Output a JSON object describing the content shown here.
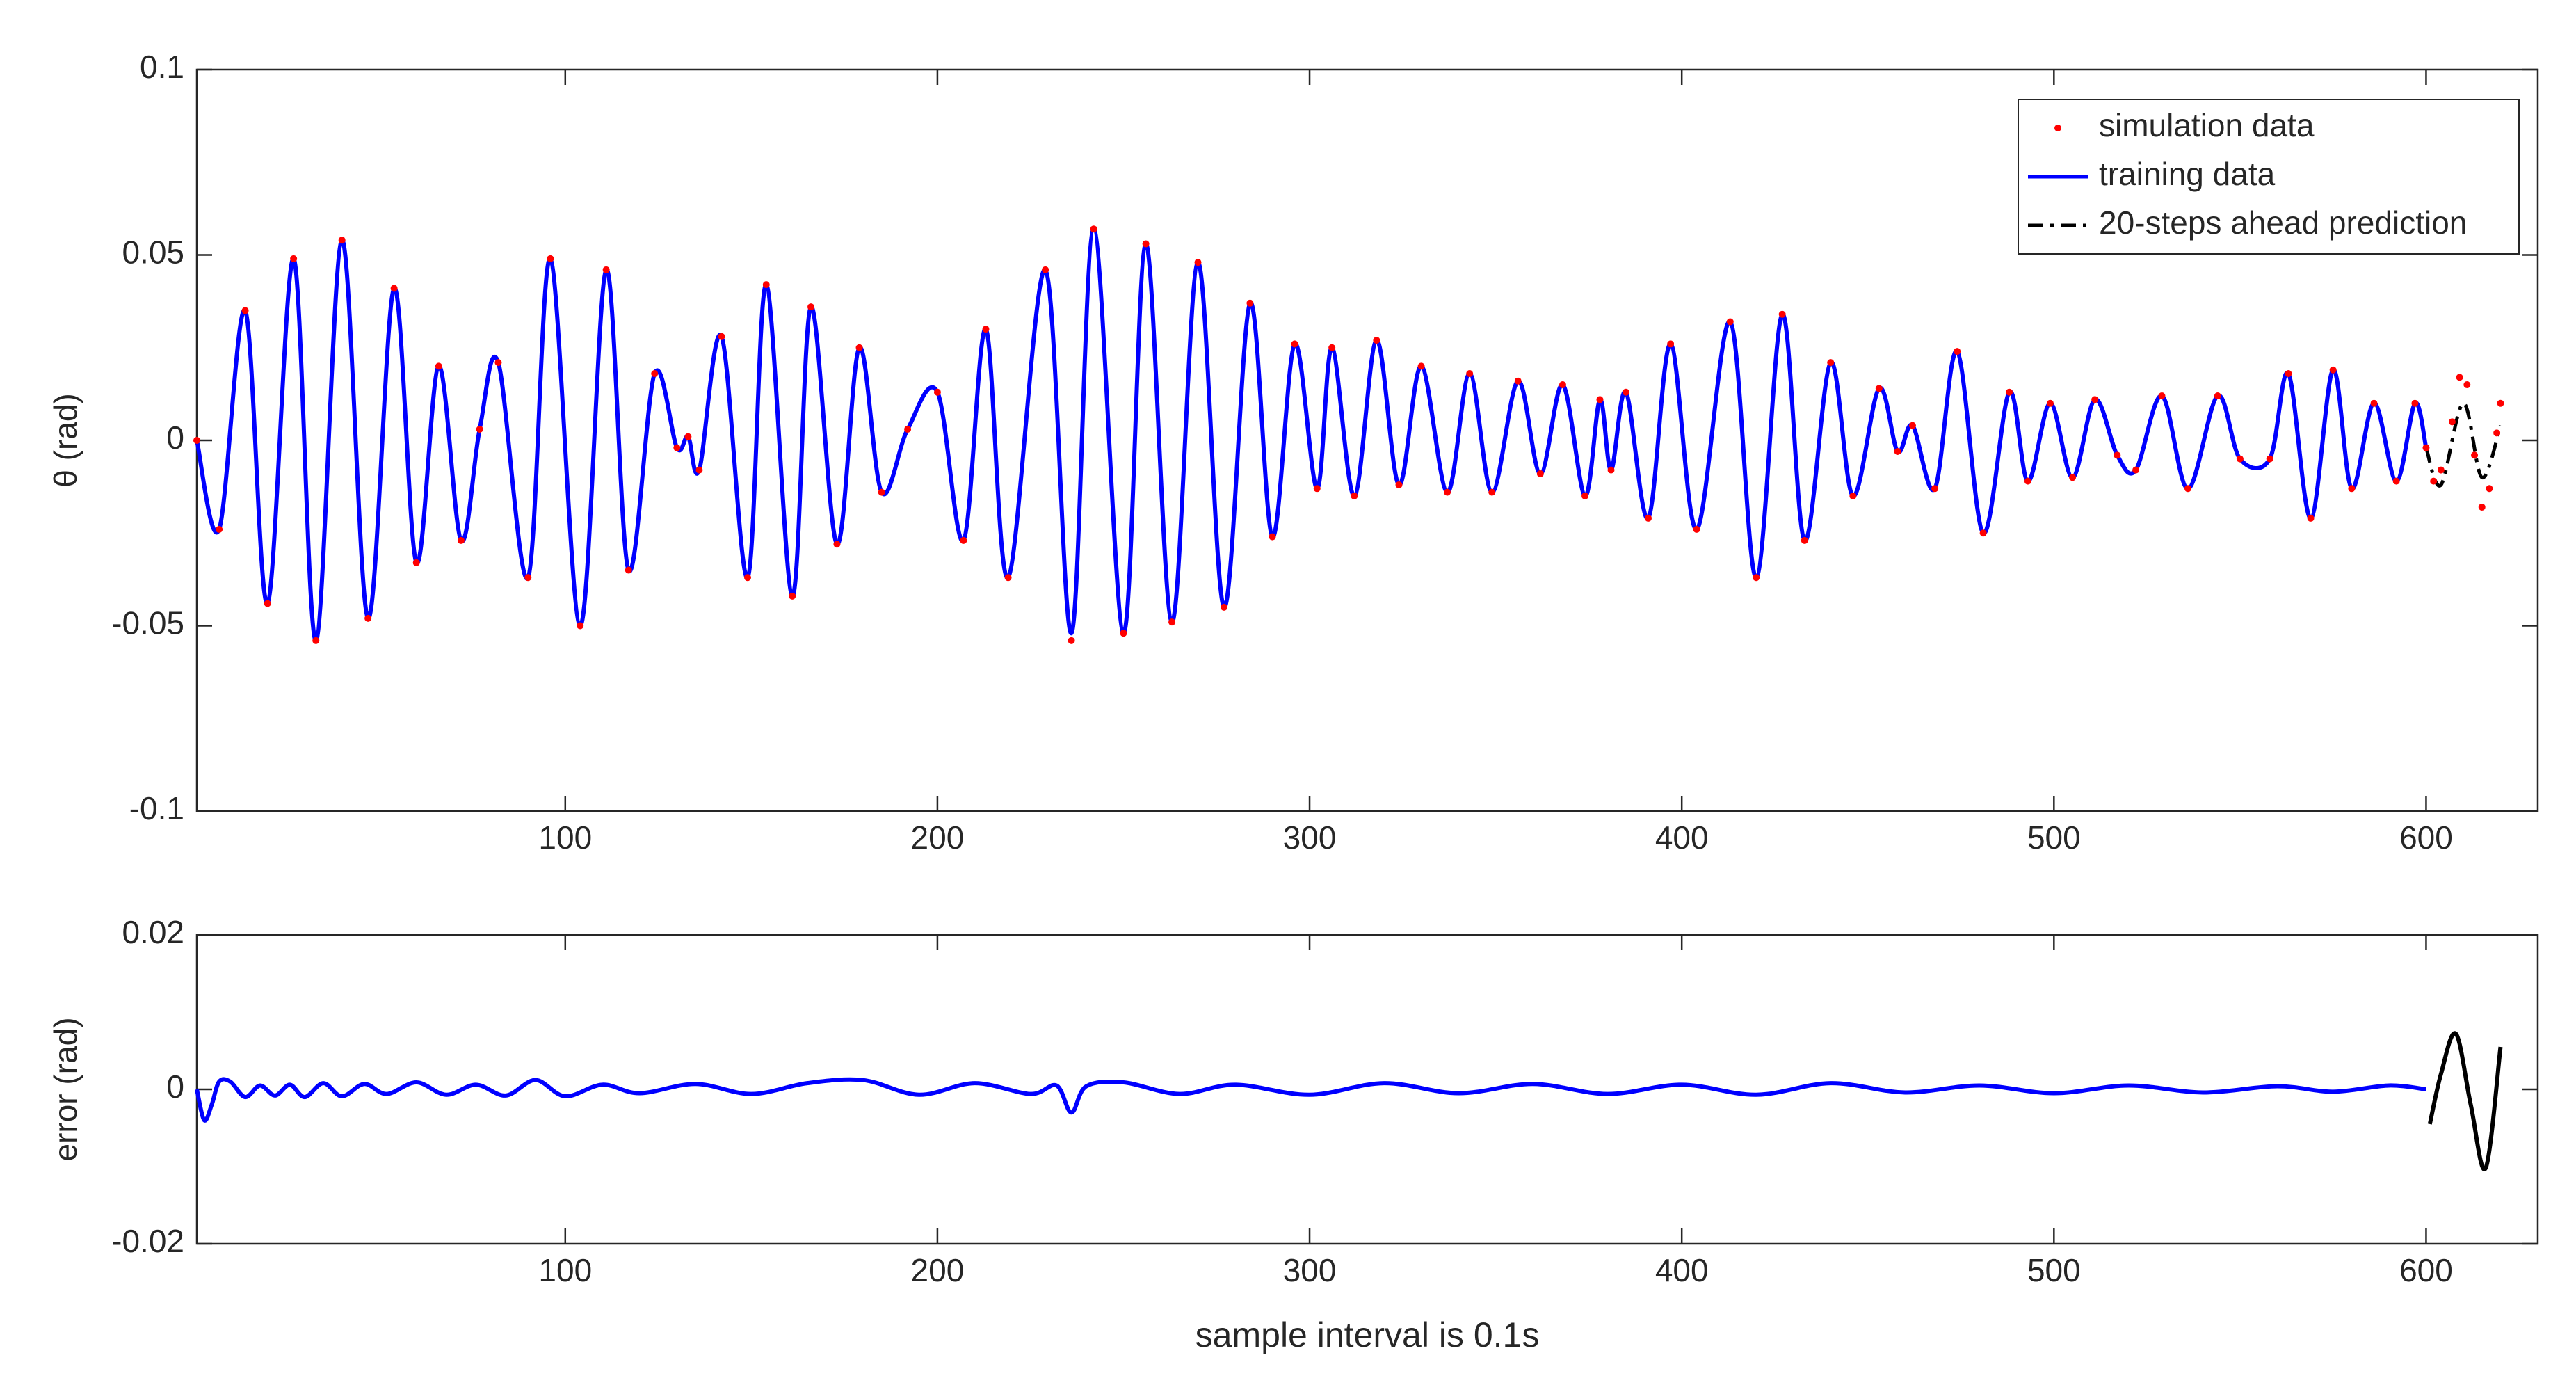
{
  "chart_data": [
    {
      "type": "line",
      "ylabel": "θ (rad)",
      "xlim": [
        1,
        630
      ],
      "xticks": [
        100,
        200,
        300,
        400,
        500,
        600
      ],
      "ylim": [
        -0.1,
        0.1
      ],
      "yticks": [
        -0.1,
        -0.05,
        0,
        0.05,
        0.1
      ],
      "legend": "upper right",
      "series": [
        {
          "name": "simulation data",
          "color": "#ff0000",
          "style": "dots",
          "x": [
            1,
            7,
            14,
            20,
            27,
            33,
            40,
            47,
            54,
            60,
            66,
            72,
            77,
            82,
            90,
            96,
            104,
            111,
            117,
            124,
            130,
            133,
            136,
            142,
            149,
            154,
            161,
            166,
            173,
            179,
            185,
            192,
            200,
            207,
            213,
            219,
            229,
            236,
            242,
            250,
            256,
            263,
            270,
            277,
            284,
            290,
            296,
            302,
            306,
            312,
            318,
            324,
            330,
            337,
            343,
            349,
            356,
            362,
            368,
            374,
            378,
            381,
            385,
            391,
            397,
            404,
            413,
            420,
            427,
            433,
            440,
            446,
            453,
            458,
            462,
            468,
            474,
            481,
            488,
            493,
            499,
            505,
            511,
            517,
            522,
            529,
            536,
            544,
            550,
            558,
            563,
            569,
            575,
            580,
            586,
            592,
            597,
            600,
            602,
            604,
            607,
            609,
            611,
            613,
            615,
            617,
            619,
            620
          ],
          "values": [
            0,
            -0.024,
            0.035,
            -0.044,
            0.049,
            -0.054,
            0.054,
            -0.048,
            0.041,
            -0.033,
            0.02,
            -0.027,
            0.003,
            0.021,
            -0.037,
            0.049,
            -0.05,
            0.046,
            -0.035,
            0.018,
            -0.002,
            0.001,
            -0.008,
            0.028,
            -0.037,
            0.042,
            -0.042,
            0.036,
            -0.028,
            0.025,
            -0.014,
            0.003,
            0.013,
            -0.027,
            0.03,
            -0.037,
            0.046,
            -0.054,
            0.057,
            -0.052,
            0.053,
            -0.049,
            0.048,
            -0.045,
            0.037,
            -0.026,
            0.026,
            -0.013,
            0.025,
            -0.015,
            0.027,
            -0.012,
            0.02,
            -0.014,
            0.018,
            -0.014,
            0.016,
            -0.009,
            0.015,
            -0.015,
            0.011,
            -0.008,
            0.013,
            -0.021,
            0.026,
            -0.024,
            0.032,
            -0.037,
            0.034,
            -0.027,
            0.021,
            -0.015,
            0.014,
            -0.003,
            0.004,
            -0.013,
            0.024,
            -0.025,
            0.013,
            -0.011,
            0.01,
            -0.01,
            0.011,
            -0.004,
            -0.008,
            0.012,
            -0.013,
            0.012,
            -0.005,
            -0.005,
            0.018,
            -0.021,
            0.019,
            -0.013,
            0.01,
            -0.011,
            0.01,
            -0.002,
            -0.011,
            -0.008,
            0.005,
            0.017,
            0.015,
            -0.004,
            -0.018,
            -0.013,
            0.002,
            0.01
          ]
        },
        {
          "name": "training data",
          "color": "#0000ff",
          "style": "solid",
          "x": [
            1,
            7,
            14,
            20,
            27,
            33,
            40,
            47,
            54,
            60,
            66,
            72,
            77,
            82,
            90,
            96,
            104,
            111,
            117,
            124,
            130,
            133,
            136,
            142,
            149,
            154,
            161,
            166,
            173,
            179,
            185,
            192,
            200,
            207,
            213,
            219,
            229,
            236,
            242,
            250,
            256,
            263,
            270,
            277,
            284,
            290,
            296,
            302,
            306,
            312,
            318,
            324,
            330,
            337,
            343,
            349,
            356,
            362,
            368,
            374,
            378,
            381,
            385,
            391,
            397,
            404,
            413,
            420,
            427,
            433,
            440,
            446,
            453,
            458,
            462,
            468,
            474,
            481,
            488,
            493,
            499,
            505,
            511,
            517,
            522,
            529,
            536,
            544,
            550,
            558,
            563,
            569,
            575,
            580,
            586,
            592,
            597,
            600
          ],
          "values": [
            0,
            -0.024,
            0.035,
            -0.044,
            0.049,
            -0.054,
            0.054,
            -0.048,
            0.041,
            -0.033,
            0.02,
            -0.027,
            0.003,
            0.021,
            -0.037,
            0.049,
            -0.05,
            0.046,
            -0.035,
            0.018,
            -0.002,
            0.001,
            -0.008,
            0.028,
            -0.037,
            0.042,
            -0.042,
            0.036,
            -0.028,
            0.025,
            -0.014,
            0.003,
            0.013,
            -0.027,
            0.03,
            -0.037,
            0.046,
            -0.052,
            0.057,
            -0.052,
            0.053,
            -0.049,
            0.048,
            -0.045,
            0.037,
            -0.026,
            0.026,
            -0.013,
            0.025,
            -0.015,
            0.027,
            -0.012,
            0.02,
            -0.014,
            0.018,
            -0.014,
            0.016,
            -0.009,
            0.015,
            -0.015,
            0.011,
            -0.008,
            0.013,
            -0.021,
            0.026,
            -0.024,
            0.032,
            -0.037,
            0.034,
            -0.027,
            0.021,
            -0.015,
            0.014,
            -0.003,
            0.004,
            -0.013,
            0.024,
            -0.025,
            0.013,
            -0.011,
            0.01,
            -0.01,
            0.011,
            -0.004,
            -0.008,
            0.012,
            -0.013,
            0.012,
            -0.005,
            -0.005,
            0.018,
            -0.021,
            0.019,
            -0.013,
            0.01,
            -0.011,
            0.01,
            -0.002
          ]
        },
        {
          "name": "20-steps ahead prediction",
          "color": "#000000",
          "style": "dash-dot",
          "x": [
            600,
            604,
            610,
            615,
            620
          ],
          "values": [
            -0.002,
            -0.012,
            0.01,
            -0.01,
            0.004
          ]
        }
      ]
    },
    {
      "type": "line",
      "ylabel": "error (rad)",
      "xlabel": "sample interval is 0.1s",
      "xlim": [
        1,
        630
      ],
      "xticks": [
        100,
        200,
        300,
        400,
        500,
        600
      ],
      "ylim": [
        -0.02,
        0.02
      ],
      "yticks": [
        -0.02,
        0,
        0.02
      ],
      "series": [
        {
          "color": "#0000ff",
          "style": "solid",
          "x": [
            1,
            3,
            5,
            7,
            10,
            14,
            18,
            22,
            26,
            30,
            35,
            40,
            46,
            52,
            60,
            68,
            76,
            84,
            92,
            100,
            110,
            120,
            135,
            150,
            165,
            180,
            195,
            210,
            225,
            232,
            236,
            240,
            250,
            265,
            280,
            300,
            320,
            340,
            360,
            380,
            400,
            420,
            440,
            460,
            480,
            500,
            520,
            540,
            560,
            575,
            590,
            600
          ],
          "values": [
            0,
            -0.004,
            -0.002,
            0.001,
            0.001,
            -0.001,
            0.0005,
            -0.0008,
            0.0006,
            -0.001,
            0.0008,
            -0.0009,
            0.0007,
            -0.0006,
            0.0009,
            -0.0007,
            0.0006,
            -0.0008,
            0.0012,
            -0.0009,
            0.0006,
            -0.0005,
            0.0007,
            -0.0006,
            0.0008,
            0.0012,
            -0.0007,
            0.0008,
            -0.0006,
            0.0005,
            -0.003,
            0.0004,
            0.0009,
            -0.0006,
            0.0006,
            -0.0007,
            0.0008,
            -0.0005,
            0.0007,
            -0.0006,
            0.0006,
            -0.0007,
            0.0008,
            -0.0004,
            0.0005,
            -0.0005,
            0.0005,
            -0.0004,
            0.0004,
            -0.0003,
            0.0005,
            0
          ]
        },
        {
          "color": "#000000",
          "style": "solid",
          "x": [
            601,
            604,
            608,
            612,
            616,
            620
          ],
          "values": [
            -0.0045,
            0.002,
            0.0072,
            -0.002,
            -0.0102,
            0.0055
          ]
        }
      ]
    }
  ]
}
